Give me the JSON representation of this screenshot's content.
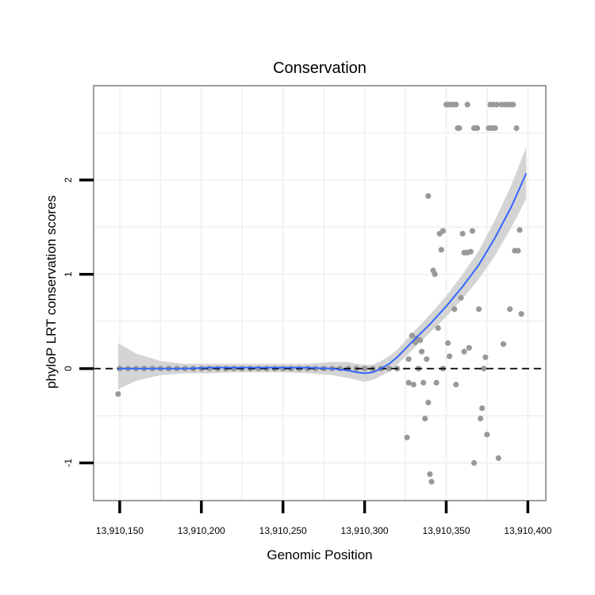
{
  "chart_data": {
    "type": "scatter",
    "title": "Conservation",
    "xlabel": "Genomic Position",
    "ylabel": "phyloP LRT conservation scores",
    "xlim": [
      13910134,
      13910411
    ],
    "ylim": [
      -1.4,
      3.0
    ],
    "x_ticks": [
      {
        "value": 13910150,
        "label": "13,910,150"
      },
      {
        "value": 13910200,
        "label": "13,910,200"
      },
      {
        "value": 13910250,
        "label": "13,910,250"
      },
      {
        "value": 13910300,
        "label": "13,910,300"
      },
      {
        "value": 13910350,
        "label": "13,910,350"
      },
      {
        "value": 13910400,
        "label": "13,910,400"
      }
    ],
    "y_ticks": [
      {
        "value": -1,
        "label": "-1"
      },
      {
        "value": 0,
        "label": "0"
      },
      {
        "value": 1,
        "label": "1"
      },
      {
        "value": 2,
        "label": "2"
      }
    ],
    "reference_line": {
      "y": 0,
      "style": "dashed"
    },
    "colors": {
      "points": "#999999",
      "smooth": "#3366FF",
      "ribbon": "#D4D4D4",
      "grid": "#F2F2F2",
      "border": "#7F7F7F",
      "reference": "#000000"
    },
    "points": [
      [
        13910149,
        -0.27
      ],
      [
        13910150,
        0.0
      ],
      [
        13910155,
        0.0
      ],
      [
        13910160,
        0.0
      ],
      [
        13910165,
        0.0
      ],
      [
        13910170,
        0.0
      ],
      [
        13910175,
        0.0
      ],
      [
        13910180,
        0.0
      ],
      [
        13910185,
        0.0
      ],
      [
        13910190,
        0.0
      ],
      [
        13910195,
        0.0
      ],
      [
        13910200,
        0.0
      ],
      [
        13910205,
        0.0
      ],
      [
        13910210,
        0.0
      ],
      [
        13910215,
        0.0
      ],
      [
        13910220,
        0.0
      ],
      [
        13910225,
        0.0
      ],
      [
        13910230,
        0.0
      ],
      [
        13910235,
        0.0
      ],
      [
        13910240,
        0.0
      ],
      [
        13910245,
        0.0
      ],
      [
        13910250,
        0.0
      ],
      [
        13910255,
        0.0
      ],
      [
        13910260,
        0.0
      ],
      [
        13910265,
        0.0
      ],
      [
        13910270,
        0.0
      ],
      [
        13910275,
        0.0
      ],
      [
        13910280,
        0.0
      ],
      [
        13910285,
        0.0
      ],
      [
        13910290,
        0.0
      ],
      [
        13910295,
        0.0
      ],
      [
        13910300,
        0.0
      ],
      [
        13910305,
        0.0
      ],
      [
        13910310,
        0.0
      ],
      [
        13910315,
        0.0
      ],
      [
        13910320,
        0.0
      ],
      [
        13910326,
        -0.73
      ],
      [
        13910327,
        -0.15
      ],
      [
        13910327,
        0.1
      ],
      [
        13910329,
        0.35
      ],
      [
        13910330,
        -0.17
      ],
      [
        13910331,
        0.28
      ],
      [
        13910332,
        0.32
      ],
      [
        13910333,
        0.0
      ],
      [
        13910334,
        0.3
      ],
      [
        13910335,
        0.18
      ],
      [
        13910336,
        -0.15
      ],
      [
        13910337,
        -0.53
      ],
      [
        13910338,
        0.1
      ],
      [
        13910339,
        1.83
      ],
      [
        13910339,
        -0.36
      ],
      [
        13910340,
        -1.12
      ],
      [
        13910341,
        -1.2
      ],
      [
        13910342,
        1.04
      ],
      [
        13910343,
        1.0
      ],
      [
        13910344,
        -0.15
      ],
      [
        13910345,
        0.43
      ],
      [
        13910346,
        1.43
      ],
      [
        13910347,
        1.26
      ],
      [
        13910348,
        1.46
      ],
      [
        13910348,
        0.0
      ],
      [
        13910350,
        2.8
      ],
      [
        13910351,
        2.8
      ],
      [
        13910351,
        0.27
      ],
      [
        13910352,
        2.8
      ],
      [
        13910352,
        0.13
      ],
      [
        13910353,
        2.8
      ],
      [
        13910354,
        2.8
      ],
      [
        13910355,
        0.63
      ],
      [
        13910356,
        2.8
      ],
      [
        13910356,
        -0.17
      ],
      [
        13910357,
        2.55
      ],
      [
        13910358,
        2.55
      ],
      [
        13910359,
        0.75
      ],
      [
        13910360,
        1.43
      ],
      [
        13910361,
        0.18
      ],
      [
        13910361,
        1.23
      ],
      [
        13910363,
        1.23
      ],
      [
        13910363,
        2.8
      ],
      [
        13910364,
        0.22
      ],
      [
        13910365,
        1.24
      ],
      [
        13910366,
        1.46
      ],
      [
        13910367,
        2.55
      ],
      [
        13910367,
        -1.0
      ],
      [
        13910368,
        2.55
      ],
      [
        13910369,
        2.55
      ],
      [
        13910370,
        0.63
      ],
      [
        13910371,
        -0.53
      ],
      [
        13910372,
        -0.42
      ],
      [
        13910373,
        0.0
      ],
      [
        13910374,
        0.12
      ],
      [
        13910375,
        -0.7
      ],
      [
        13910376,
        2.55
      ],
      [
        13910377,
        2.8
      ],
      [
        13910378,
        2.55
      ],
      [
        13910379,
        2.8
      ],
      [
        13910380,
        2.55
      ],
      [
        13910381,
        2.8
      ],
      [
        13910382,
        -0.95
      ],
      [
        13910384,
        2.8
      ],
      [
        13910385,
        0.26
      ],
      [
        13910386,
        2.8
      ],
      [
        13910387,
        2.8
      ],
      [
        13910388,
        2.8
      ],
      [
        13910389,
        0.63
      ],
      [
        13910390,
        2.8
      ],
      [
        13910391,
        2.8
      ],
      [
        13910392,
        1.25
      ],
      [
        13910393,
        2.55
      ],
      [
        13910394,
        1.25
      ],
      [
        13910395,
        1.47
      ],
      [
        13910396,
        0.58
      ]
    ],
    "smooth_fit": {
      "x": [
        13910149,
        13910160,
        13910175,
        13910190,
        13910205,
        13910220,
        13910235,
        13910250,
        13910265,
        13910280,
        13910290,
        13910295,
        13910300,
        13910305,
        13910310,
        13910315,
        13910320,
        13910330,
        13910340,
        13910350,
        13910360,
        13910370,
        13910380,
        13910390,
        13910399
      ],
      "y": [
        0.0,
        0.0,
        0.0,
        0.0,
        0.01,
        0.01,
        0.01,
        0.01,
        0.01,
        0.0,
        -0.02,
        -0.04,
        -0.05,
        -0.04,
        0.0,
        0.05,
        0.12,
        0.3,
        0.47,
        0.66,
        0.87,
        1.1,
        1.39,
        1.72,
        2.07
      ],
      "lower": [
        -0.22,
        -0.13,
        -0.07,
        -0.05,
        -0.05,
        -0.04,
        -0.04,
        -0.04,
        -0.05,
        -0.07,
        -0.1,
        -0.12,
        -0.14,
        -0.12,
        -0.08,
        -0.03,
        0.04,
        0.21,
        0.38,
        0.55,
        0.74,
        0.95,
        1.2,
        1.5,
        1.8
      ],
      "upper": [
        0.27,
        0.16,
        0.08,
        0.05,
        0.05,
        0.05,
        0.05,
        0.05,
        0.05,
        0.07,
        0.07,
        0.05,
        0.04,
        0.04,
        0.08,
        0.13,
        0.2,
        0.39,
        0.57,
        0.77,
        1.0,
        1.25,
        1.58,
        1.95,
        2.35
      ]
    }
  }
}
